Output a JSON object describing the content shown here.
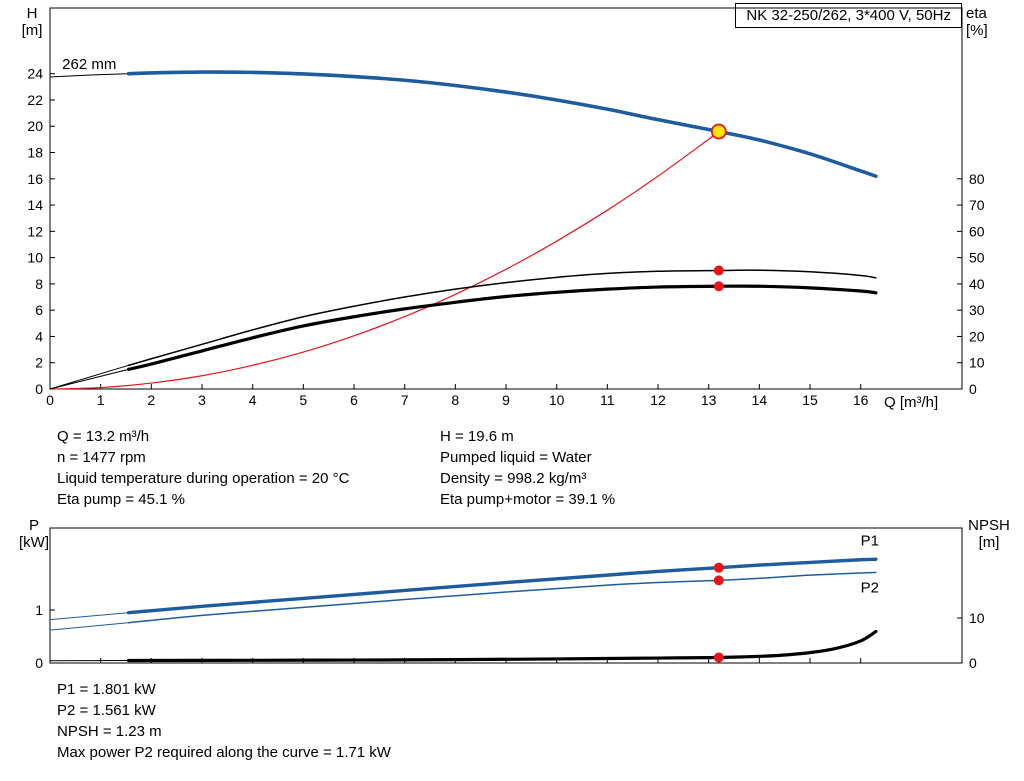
{
  "header": {
    "title_box": "NK 32-250/262, 3*400 V, 50Hz"
  },
  "colors": {
    "blue": "#1f5c9d",
    "red": "#e8141c",
    "black": "#000000",
    "duty_yellow": "#ffe500"
  },
  "operating_point_info": {
    "left": [
      "Q = 13.2 m³/h",
      "n = 1477 rpm",
      "Liquid temperature during operation = 20 °C",
      "Eta pump = 45.1 %"
    ],
    "right": [
      "H = 19.6 m",
      "Pumped liquid = Water",
      "Density = 998.2 kg/m³",
      "Eta pump+motor = 39.1 %"
    ]
  },
  "power_info": [
    "P1 = 1.801 kW",
    "P2 = 1.561 kW",
    "NPSH = 1.23 m",
    "Max power P2 required along the curve = 1.71 kW"
  ],
  "chart_data": [
    {
      "id": "hq-chart",
      "type": "line",
      "title": "NK 32-250/262, 3*400 V, 50Hz",
      "x_axis": {
        "label": "Q [m³/h]",
        "min": 0,
        "max": 18,
        "show_labels": true,
        "ticks": [
          0,
          1,
          2,
          3,
          4,
          5,
          6,
          7,
          8,
          9,
          10,
          11,
          12,
          13,
          14,
          15,
          16
        ]
      },
      "y_left": {
        "label": "H",
        "unit": "[m]",
        "min": 0,
        "max": 29,
        "ticks": [
          0,
          2,
          4,
          6,
          8,
          10,
          12,
          14,
          16,
          18,
          20,
          22,
          24
        ]
      },
      "y_right": {
        "label": "eta",
        "unit": "[%]",
        "min": 0,
        "max": 145,
        "ticks": [
          0,
          10,
          20,
          30,
          40,
          50,
          60,
          70,
          80
        ]
      },
      "series": [
        {
          "name": "head-curve-lead",
          "axis": "left",
          "color": "#000000",
          "width": 1,
          "points": [
            [
              0,
              23.75
            ],
            [
              0.8,
              23.9
            ],
            [
              1.55,
              24.0
            ]
          ]
        },
        {
          "name": "head-curve-262mm",
          "axis": "left",
          "color": "#1f5c9d",
          "width": 3.6,
          "points": [
            [
              1.55,
              24.0
            ],
            [
              2,
              24.06
            ],
            [
              3,
              24.12
            ],
            [
              4,
              24.1
            ],
            [
              5,
              23.98
            ],
            [
              6,
              23.78
            ],
            [
              7,
              23.5
            ],
            [
              8,
              23.1
            ],
            [
              9,
              22.6
            ],
            [
              10,
              22.0
            ],
            [
              11,
              21.3
            ],
            [
              12,
              20.5
            ],
            [
              13,
              19.75
            ],
            [
              13.2,
              19.6
            ],
            [
              14,
              18.95
            ],
            [
              15,
              17.9
            ],
            [
              16,
              16.6
            ],
            [
              16.3,
              16.2
            ]
          ]
        },
        {
          "name": "system-curve",
          "axis": "left",
          "color": "#e8141c",
          "width": 1.2,
          "points": [
            [
              0,
              0
            ],
            [
              1,
              0.11
            ],
            [
              2,
              0.45
            ],
            [
              3,
              1.01
            ],
            [
              4,
              1.8
            ],
            [
              5,
              2.81
            ],
            [
              6,
              4.05
            ],
            [
              7,
              5.51
            ],
            [
              8,
              7.2
            ],
            [
              9,
              9.11
            ],
            [
              10,
              11.25
            ],
            [
              11,
              13.61
            ],
            [
              12,
              16.2
            ],
            [
              13,
              19.01
            ],
            [
              13.2,
              19.6
            ]
          ]
        },
        {
          "name": "eta-pump-lead",
          "axis": "right",
          "color": "#000000",
          "width": 1,
          "points": [
            [
              0,
              0
            ],
            [
              1.55,
              9
            ]
          ]
        },
        {
          "name": "eta-pump-curve",
          "axis": "right",
          "color": "#000000",
          "width": 1.5,
          "points": [
            [
              1.55,
              9
            ],
            [
              2,
              11.5
            ],
            [
              3,
              17
            ],
            [
              4,
              22.5
            ],
            [
              5,
              27.5
            ],
            [
              6,
              31.5
            ],
            [
              7,
              35
            ],
            [
              8,
              38
            ],
            [
              9,
              40.5
            ],
            [
              10,
              42.5
            ],
            [
              11,
              44
            ],
            [
              12,
              44.8
            ],
            [
              13.2,
              45.1
            ],
            [
              14,
              45.2
            ],
            [
              15,
              44.6
            ],
            [
              16,
              43.2
            ],
            [
              16.3,
              42.3
            ]
          ]
        },
        {
          "name": "eta-pump-motor-lead",
          "axis": "right",
          "color": "#000000",
          "width": 1,
          "points": [
            [
              0,
              0
            ],
            [
              1.55,
              7.5
            ]
          ]
        },
        {
          "name": "eta-pump-motor-curve",
          "axis": "right",
          "color": "#000000",
          "width": 3.2,
          "points": [
            [
              1.55,
              7.5
            ],
            [
              2,
              9.5
            ],
            [
              3,
              14.5
            ],
            [
              4,
              19.5
            ],
            [
              5,
              24
            ],
            [
              6,
              27.5
            ],
            [
              7,
              30.5
            ],
            [
              8,
              33
            ],
            [
              9,
              35.2
            ],
            [
              10,
              36.8
            ],
            [
              11,
              38
            ],
            [
              12,
              38.8
            ],
            [
              13.2,
              39.1
            ],
            [
              14,
              39.1
            ],
            [
              15,
              38.5
            ],
            [
              16,
              37.3
            ],
            [
              16.3,
              36.6
            ]
          ]
        }
      ],
      "markers": [
        {
          "name": "eta-pump-point",
          "x": 13.2,
          "y": 45.1,
          "axis": "right",
          "r": 5,
          "fill": "#e8141c"
        },
        {
          "name": "eta-pump-motor-point",
          "x": 13.2,
          "y": 39.1,
          "axis": "right",
          "r": 5,
          "fill": "#e8141c"
        },
        {
          "name": "duty-point",
          "x": 13.2,
          "y": 19.6,
          "axis": "left",
          "r": 7,
          "fill": "#ffe500",
          "stroke": "#e8141c",
          "stroke_width": 1.8
        }
      ],
      "annotations": [
        {
          "name": "impeller-diameter-label",
          "text": "262 mm",
          "x": 0.24,
          "y": 24.35,
          "axis": "left",
          "color": "#000000",
          "size": 15
        }
      ]
    },
    {
      "id": "power-npsh-chart",
      "type": "line",
      "x_axis": {
        "label": "",
        "min": 0,
        "max": 18,
        "show_labels": false,
        "ticks": [
          0,
          1,
          2,
          3,
          4,
          5,
          6,
          7,
          8,
          9,
          10,
          11,
          12,
          13,
          14,
          15,
          16
        ]
      },
      "y_left": {
        "label": "P",
        "unit": "[kW]",
        "min": 0,
        "max": 2.55,
        "ticks": [
          0,
          1
        ]
      },
      "y_right": {
        "label": "NPSH",
        "unit": "[m]",
        "min": 0,
        "max": 30,
        "ticks": [
          0,
          10
        ]
      },
      "series": [
        {
          "name": "p1-curve-lead",
          "axis": "left",
          "color": "#1f5c9d",
          "width": 1,
          "points": [
            [
              0,
              0.82
            ],
            [
              1.55,
              0.95
            ]
          ]
        },
        {
          "name": "p1-curve",
          "axis": "left",
          "color": "#1f5c9d",
          "width": 3.4,
          "points": [
            [
              1.55,
              0.95
            ],
            [
              3,
              1.07
            ],
            [
              5,
              1.22
            ],
            [
              7,
              1.37
            ],
            [
              9,
              1.52
            ],
            [
              11,
              1.66
            ],
            [
              12,
              1.73
            ],
            [
              13.2,
              1.801
            ],
            [
              14,
              1.85
            ],
            [
              15,
              1.9
            ],
            [
              16,
              1.95
            ],
            [
              16.3,
              1.96
            ]
          ]
        },
        {
          "name": "p2-curve-lead",
          "axis": "left",
          "color": "#1f5c9d",
          "width": 1,
          "points": [
            [
              0,
              0.62
            ],
            [
              1.55,
              0.76
            ]
          ]
        },
        {
          "name": "p2-curve",
          "axis": "left",
          "color": "#1f5c9d",
          "width": 1.5,
          "points": [
            [
              1.55,
              0.76
            ],
            [
              3,
              0.9
            ],
            [
              5,
              1.05
            ],
            [
              7,
              1.2
            ],
            [
              9,
              1.34
            ],
            [
              11,
              1.47
            ],
            [
              12,
              1.52
            ],
            [
              13.2,
              1.561
            ],
            [
              14,
              1.6
            ],
            [
              15,
              1.66
            ],
            [
              16,
              1.7
            ],
            [
              16.3,
              1.71
            ]
          ]
        },
        {
          "name": "npsh-curve-lead",
          "axis": "right",
          "color": "#000000",
          "width": 1,
          "points": [
            [
              0,
              0.5
            ],
            [
              1.55,
              0.55
            ]
          ]
        },
        {
          "name": "npsh-curve",
          "axis": "right",
          "color": "#000000",
          "width": 3.2,
          "points": [
            [
              1.55,
              0.55
            ],
            [
              4,
              0.6
            ],
            [
              6,
              0.65
            ],
            [
              8,
              0.75
            ],
            [
              10,
              0.9
            ],
            [
              11,
              1.0
            ],
            [
              12,
              1.1
            ],
            [
              13,
              1.2
            ],
            [
              13.2,
              1.23
            ],
            [
              13.8,
              1.4
            ],
            [
              14.4,
              1.7
            ],
            [
              15,
              2.3
            ],
            [
              15.5,
              3.2
            ],
            [
              16,
              4.9
            ],
            [
              16.3,
              7.0
            ]
          ]
        }
      ],
      "markers": [
        {
          "name": "p1-point",
          "x": 13.2,
          "y": 1.801,
          "axis": "left",
          "r": 5,
          "fill": "#e8141c"
        },
        {
          "name": "p2-point",
          "x": 13.2,
          "y": 1.561,
          "axis": "left",
          "r": 5,
          "fill": "#e8141c"
        },
        {
          "name": "npsh-point",
          "x": 13.2,
          "y": 1.23,
          "axis": "right",
          "r": 5,
          "fill": "#e8141c"
        }
      ],
      "annotations": [
        {
          "name": "p1-label",
          "text": "P1",
          "x": 16.0,
          "y": 2.22,
          "axis": "left",
          "color": "#1f5c9d",
          "size": 15
        },
        {
          "name": "p2-label",
          "text": "P2",
          "x": 16.0,
          "y": 1.33,
          "axis": "left",
          "color": "#1f5c9d",
          "size": 15
        }
      ]
    }
  ]
}
